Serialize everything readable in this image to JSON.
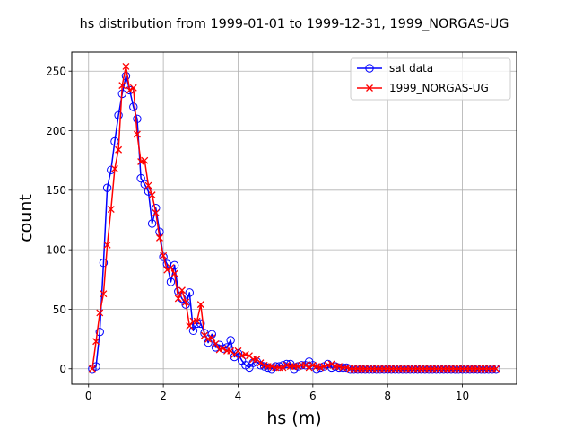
{
  "chart_data": {
    "type": "line",
    "title": "hs distribution from 1999-01-01 to 1999-12-31, 1999_NORGAS-UG",
    "xlabel": "hs (m)",
    "ylabel": "count",
    "xlim": [
      -0.45,
      11.45
    ],
    "ylim": [
      -13,
      266
    ],
    "xticks": [
      0,
      2,
      4,
      6,
      8,
      10
    ],
    "yticks": [
      0,
      50,
      100,
      150,
      200,
      250
    ],
    "grid": true,
    "legend_position": "upper-right",
    "x": [
      0.1,
      0.2,
      0.3,
      0.4,
      0.5,
      0.6,
      0.7,
      0.8,
      0.9,
      1.0,
      1.1,
      1.2,
      1.3,
      1.4,
      1.5,
      1.6,
      1.7,
      1.8,
      1.9,
      2.0,
      2.1,
      2.2,
      2.3,
      2.4,
      2.5,
      2.6,
      2.7,
      2.8,
      2.9,
      3.0,
      3.1,
      3.2,
      3.3,
      3.4,
      3.5,
      3.6,
      3.7,
      3.8,
      3.9,
      4.0,
      4.1,
      4.2,
      4.3,
      4.4,
      4.5,
      4.6,
      4.7,
      4.8,
      4.9,
      5.0,
      5.1,
      5.2,
      5.3,
      5.4,
      5.5,
      5.6,
      5.7,
      5.8,
      5.9,
      6.0,
      6.1,
      6.2,
      6.3,
      6.4,
      6.5,
      6.6,
      6.7,
      6.8,
      6.9,
      7.0,
      7.1,
      7.2,
      7.3,
      7.4,
      7.5,
      7.6,
      7.7,
      7.8,
      7.9,
      8.0,
      8.1,
      8.2,
      8.3,
      8.4,
      8.5,
      8.6,
      8.7,
      8.8,
      8.9,
      9.0,
      9.1,
      9.2,
      9.3,
      9.4,
      9.5,
      9.6,
      9.7,
      9.8,
      9.9,
      10.0,
      10.1,
      10.2,
      10.3,
      10.4,
      10.5,
      10.6,
      10.7,
      10.8,
      10.9
    ],
    "series": [
      {
        "name": "sat data",
        "color": "#0000ff",
        "marker": "circle",
        "values": [
          0,
          2,
          31,
          89,
          152,
          167,
          191,
          213,
          231,
          246,
          234,
          220,
          210,
          160,
          155,
          149,
          122,
          135,
          115,
          94,
          88,
          73,
          87,
          65,
          59,
          54,
          64,
          32,
          38,
          38,
          30,
          22,
          29,
          18,
          20,
          17,
          18,
          24,
          10,
          13,
          7,
          3,
          1,
          5,
          6,
          3,
          2,
          1,
          0,
          2,
          2,
          3,
          4,
          4,
          0,
          2,
          3,
          3,
          6,
          3,
          0,
          1,
          2,
          4,
          1,
          2,
          1,
          1,
          1,
          0,
          0,
          0,
          0,
          0,
          0,
          0,
          0,
          0,
          0,
          0,
          0,
          0,
          0,
          0,
          0,
          0,
          0,
          0,
          0,
          0,
          0,
          0,
          0,
          0,
          0,
          0,
          0,
          0,
          0,
          0,
          0,
          0,
          0,
          0,
          0,
          0,
          0,
          0,
          0
        ]
      },
      {
        "name": "1999_NORGAS-UG",
        "color": "#ff0000",
        "marker": "x",
        "values": [
          0,
          23,
          47,
          63,
          104,
          134,
          168,
          184,
          238,
          254,
          234,
          236,
          197,
          174,
          175,
          154,
          146,
          131,
          110,
          95,
          83,
          85,
          80,
          59,
          66,
          56,
          36,
          40,
          40,
          54,
          28,
          25,
          26,
          21,
          16,
          17,
          15,
          15,
          12,
          15,
          11,
          12,
          11,
          8,
          8,
          5,
          3,
          2,
          2,
          1,
          1,
          1,
          3,
          2,
          2,
          2,
          3,
          3,
          1,
          3,
          2,
          1,
          2,
          3,
          4,
          2,
          2,
          1,
          1,
          0,
          0,
          0,
          0,
          0,
          0,
          0,
          0,
          0,
          0,
          0,
          0,
          0,
          0,
          0,
          0,
          0,
          0,
          0,
          0,
          0,
          0,
          0,
          0,
          0,
          0,
          0,
          0,
          0,
          0,
          0,
          0,
          0,
          0,
          0,
          0,
          0,
          0,
          0,
          0
        ]
      }
    ]
  }
}
